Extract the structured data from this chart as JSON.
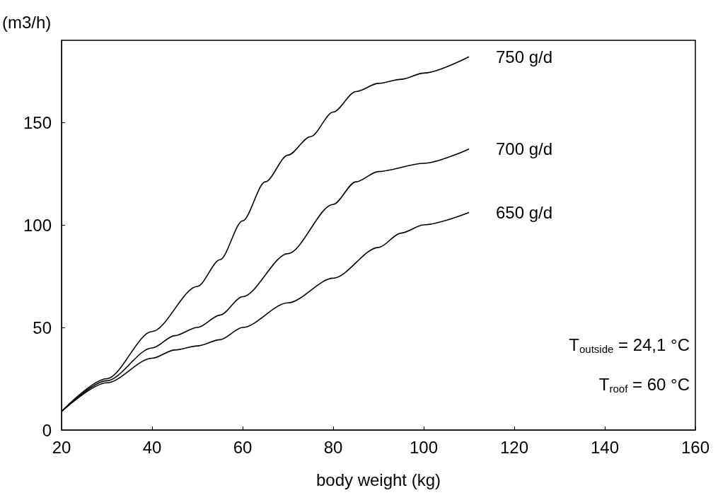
{
  "chart_data": {
    "type": "line",
    "xlabel": "body weight (kg)",
    "ylabel": "(m3/h)",
    "xlim": [
      20,
      160
    ],
    "xticks": [
      20,
      40,
      60,
      80,
      100,
      120,
      140,
      160
    ],
    "ylim": [
      0,
      190
    ],
    "yticks": [
      0,
      50,
      100,
      150
    ],
    "grid": false,
    "legend": false,
    "marker": "none",
    "line_style": "solid",
    "series": [
      {
        "name": "750 g/d",
        "color": "#000000",
        "x": [
          20,
          30,
          40,
          50,
          55,
          60,
          65,
          70,
          75,
          80,
          85,
          90,
          95,
          100,
          110
        ],
        "values": [
          9,
          25,
          48,
          70,
          83,
          102,
          121,
          134,
          143,
          155,
          165,
          169,
          171,
          174,
          182
        ]
      },
      {
        "name": "700 g/d",
        "color": "#000000",
        "x": [
          20,
          30,
          40,
          45,
          50,
          55,
          60,
          70,
          80,
          85,
          90,
          100,
          110
        ],
        "values": [
          9,
          24,
          40,
          46,
          50,
          56,
          65,
          86,
          110,
          121,
          126,
          130,
          137
        ]
      },
      {
        "name": "650 g/d",
        "color": "#000000",
        "x": [
          20,
          30,
          40,
          45,
          50,
          55,
          60,
          70,
          80,
          90,
          95,
          100,
          110
        ],
        "values": [
          9,
          23,
          35,
          39,
          41,
          44,
          50,
          62,
          74,
          89,
          96,
          100,
          106
        ]
      }
    ],
    "annotations": [
      "T$_{outside}$ = 24,1 °C",
      "T$_{roof}$ = 60 °C"
    ]
  }
}
